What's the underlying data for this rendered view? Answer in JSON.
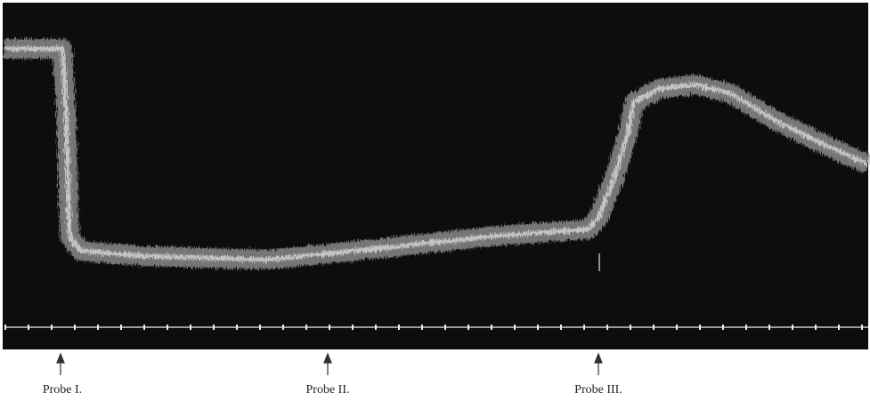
{
  "labels": [
    "Probe I.",
    "Probe II.",
    "Probe III."
  ]
}
